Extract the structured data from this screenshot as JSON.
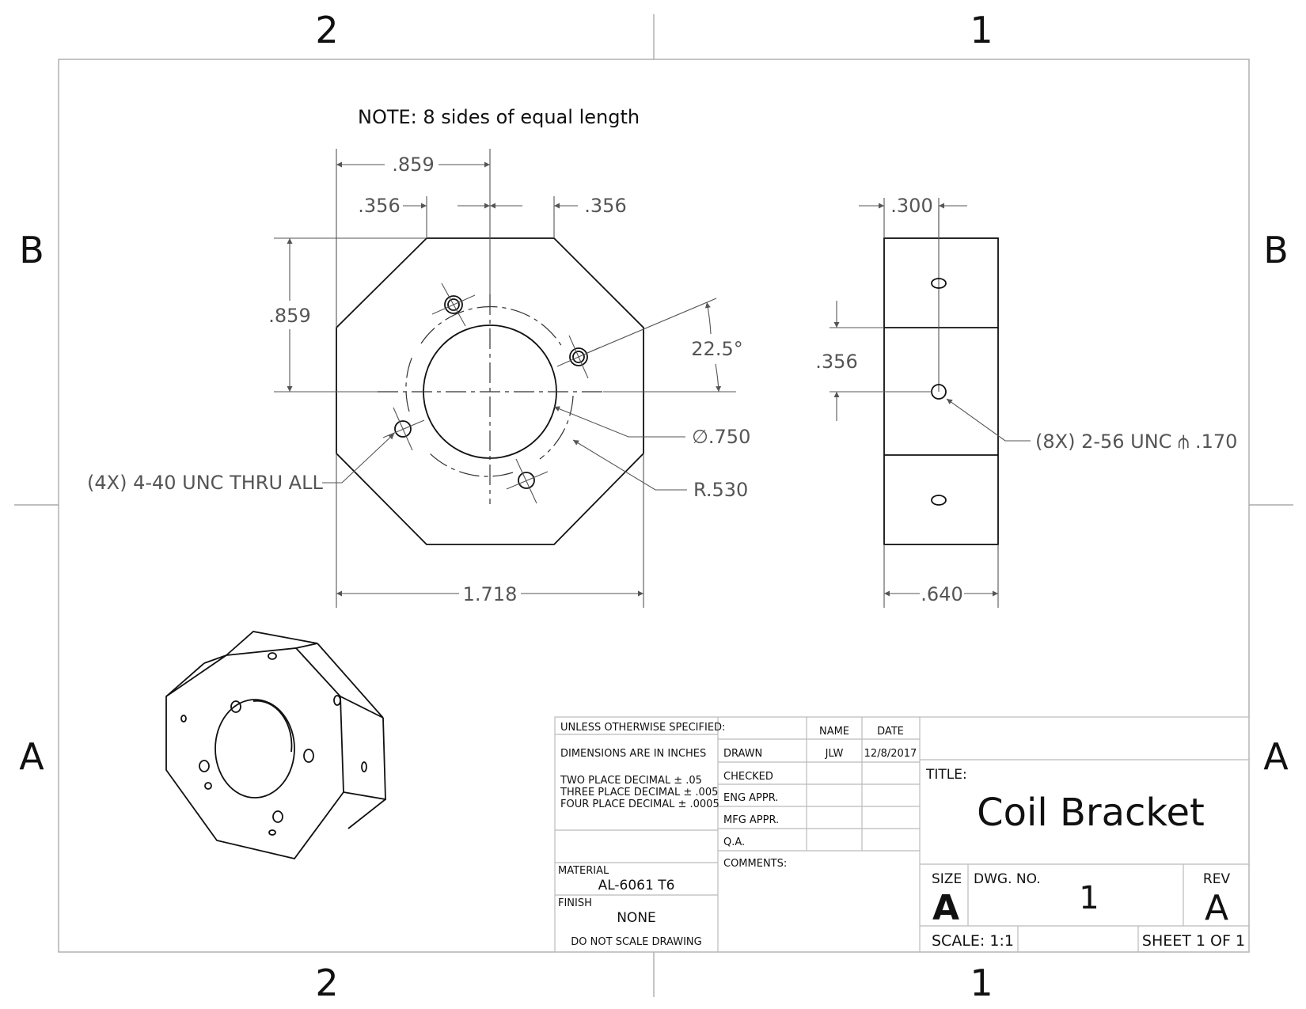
{
  "zones": {
    "columns": [
      "2",
      "1"
    ],
    "rows": [
      "B",
      "A"
    ]
  },
  "note": "NOTE: 8 sides of equal length",
  "front_view": {
    "dims": {
      "top_overall": ".859",
      "top_left_chamfer": ".356",
      "top_right_chamfer": ".356",
      "left_height": ".859",
      "angle": "22.5°",
      "bore_diameter": "∅.750",
      "bolt_circle_radius": "R.530",
      "bottom_width": "1.718"
    },
    "callout_holes": "(4X) 4-40 UNC  THRU ALL"
  },
  "side_view": {
    "dims": {
      "top_thickness": ".300",
      "left_spacing": ".356",
      "bottom_width": ".640"
    },
    "callout_taps": "(8X) 2-56 UNC ⫛ .170"
  },
  "title_block": {
    "unless": "UNLESS OTHERWISE SPECIFIED:",
    "units": "DIMENSIONS ARE IN INCHES",
    "tol2": "TWO PLACE DECIMAL  ± .05",
    "tol3": "THREE PLACE DECIMAL  ± .005",
    "tol4": "FOUR PLACE DECIMAL  ± .0005",
    "material_label": "MATERIAL",
    "material": "AL-6061 T6",
    "finish_label": "FINISH",
    "finish": "NONE",
    "no_scale": "DO NOT SCALE DRAWING",
    "name_header": "NAME",
    "date_header": "DATE",
    "rows": [
      {
        "label": "DRAWN",
        "name": "JLW",
        "date": "12/8/2017"
      },
      {
        "label": "CHECKED",
        "name": "",
        "date": ""
      },
      {
        "label": "ENG APPR.",
        "name": "",
        "date": ""
      },
      {
        "label": "MFG APPR.",
        "name": "",
        "date": ""
      },
      {
        "label": "Q.A.",
        "name": "",
        "date": ""
      }
    ],
    "comments_label": "COMMENTS:",
    "title_label": "TITLE:",
    "title": "Coil Bracket",
    "size_label": "SIZE",
    "size": "A",
    "dwg_no_label": "DWG.  NO.",
    "dwg_no": "1",
    "rev_label": "REV",
    "rev": "A",
    "scale": "SCALE: 1:1",
    "sheet": "SHEET 1 OF 1"
  }
}
